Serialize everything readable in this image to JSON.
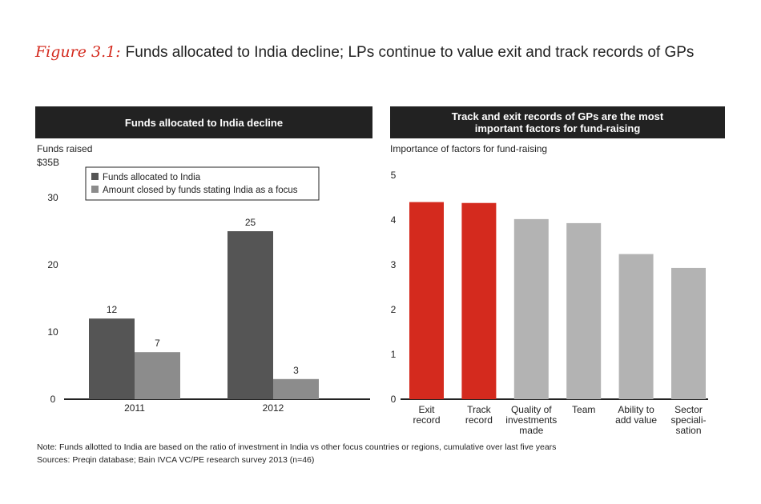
{
  "figure": {
    "number": "Figure 3.1:",
    "title": "Funds allocated to India decline; LPs continue to value exit and track records of GPs"
  },
  "left_panel": {
    "header": "Funds allocated to India decline",
    "ylabel": "Funds raised",
    "y_unit_label": "$35B"
  },
  "right_panel": {
    "header_line1": "Track and exit records of GPs are the most",
    "header_line2": "important factors for fund-raising",
    "ylabel": "Importance of factors for fund-raising"
  },
  "notes": {
    "note": "Note: Funds allotted to India are based on the ratio of investment in India vs other focus countries or regions, cumulative over last five years",
    "sources": "Sources: Preqin database; Bain IVCA VC/PE research survey 2013 (n=46)"
  },
  "colors": {
    "dark_bar": "#555555",
    "light_bar": "#8c8c8c",
    "red_bar": "#d42a1e",
    "gray_bar": "#b3b3b3",
    "header_bg": "#222222"
  },
  "chart_data": [
    {
      "type": "bar",
      "title": "Funds allocated to India decline",
      "ylabel": "Funds raised",
      "categories": [
        "2011",
        "2012"
      ],
      "series": [
        {
          "name": "Funds allocated to India",
          "values": [
            12,
            25
          ]
        },
        {
          "name": "Amount closed by funds stating India as a focus",
          "values": [
            7,
            3
          ]
        }
      ],
      "ylim": [
        0,
        35
      ],
      "yticks": [
        "0",
        "10",
        "20",
        "30",
        "$35B"
      ],
      "data_labels": [
        [
          "12",
          "25"
        ],
        [
          "7",
          "3"
        ]
      ],
      "legend": "top-left",
      "grid": false
    },
    {
      "type": "bar",
      "title": "Track and exit records of GPs are the most important factors for fund-raising",
      "ylabel": "Importance of factors for fund-raising",
      "categories": [
        [
          "Exit",
          "record"
        ],
        [
          "Track",
          "record"
        ],
        [
          "Quality of",
          "investments",
          "made"
        ],
        [
          "Team"
        ],
        [
          "Ability to",
          "add value"
        ],
        [
          "Sector",
          "speciali-",
          "sation"
        ]
      ],
      "values": [
        4.4,
        4.38,
        4.02,
        3.93,
        3.24,
        2.93
      ],
      "highlight": [
        true,
        true,
        false,
        false,
        false,
        false
      ],
      "ylim": [
        0,
        5
      ],
      "yticks": [
        "0",
        "1",
        "2",
        "3",
        "4",
        "5"
      ],
      "grid": false
    }
  ]
}
